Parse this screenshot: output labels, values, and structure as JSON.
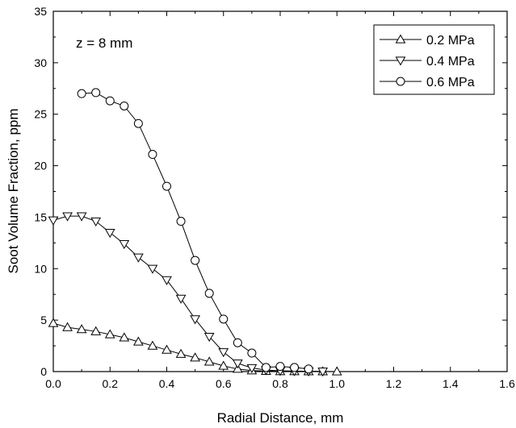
{
  "chart_data": {
    "type": "line",
    "title": "",
    "annotation": "z = 8 mm",
    "xlabel": "Radial Distance, mm",
    "ylabel": "Soot Volume Fraction, ppm",
    "xlim": [
      0.0,
      1.6
    ],
    "ylim": [
      0,
      35
    ],
    "xticks": [
      "0.0",
      "0.2",
      "0.4",
      "0.6",
      "0.8",
      "1.0",
      "1.2",
      "1.4",
      "1.6"
    ],
    "yticks": [
      "0",
      "5",
      "10",
      "15",
      "20",
      "25",
      "30",
      "35"
    ],
    "grid": false,
    "legend_position": "top-right",
    "series": [
      {
        "name": "0.2 MPa",
        "marker": "triangle-up",
        "x": [
          0.0,
          0.05,
          0.1,
          0.15,
          0.2,
          0.25,
          0.3,
          0.35,
          0.4,
          0.45,
          0.5,
          0.55,
          0.6,
          0.65,
          0.7,
          0.75,
          0.8,
          0.85,
          0.9,
          0.95,
          1.0
        ],
        "y": [
          4.7,
          4.3,
          4.1,
          3.9,
          3.6,
          3.3,
          2.9,
          2.5,
          2.1,
          1.7,
          1.35,
          0.95,
          0.55,
          0.25,
          0.1,
          0.05,
          0.02,
          0.02,
          0.01,
          0.01,
          0.0
        ]
      },
      {
        "name": "0.4 MPa",
        "marker": "triangle-down",
        "x": [
          0.0,
          0.05,
          0.1,
          0.15,
          0.2,
          0.25,
          0.3,
          0.35,
          0.4,
          0.45,
          0.5,
          0.55,
          0.6,
          0.65,
          0.7,
          0.75,
          0.8,
          0.85,
          0.9,
          0.95
        ],
        "y": [
          14.7,
          15.1,
          15.1,
          14.6,
          13.5,
          12.4,
          11.1,
          10.0,
          8.9,
          7.1,
          5.1,
          3.4,
          1.9,
          0.8,
          0.35,
          0.15,
          0.08,
          0.05,
          0.03,
          0.02
        ]
      },
      {
        "name": "0.6 MPa",
        "marker": "circle",
        "x": [
          0.1,
          0.15,
          0.2,
          0.25,
          0.3,
          0.35,
          0.4,
          0.45,
          0.5,
          0.55,
          0.6,
          0.65,
          0.7,
          0.75,
          0.8,
          0.85,
          0.9
        ],
        "y": [
          27.0,
          27.1,
          26.3,
          25.8,
          24.1,
          21.1,
          18.0,
          14.6,
          10.8,
          7.6,
          5.1,
          2.8,
          1.8,
          0.4,
          0.5,
          0.4,
          0.25
        ]
      }
    ]
  }
}
